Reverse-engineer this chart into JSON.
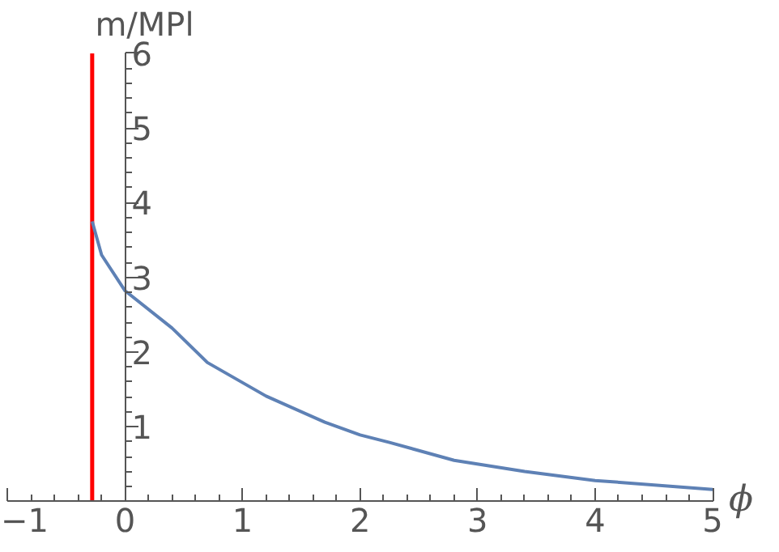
{
  "chart_data": {
    "type": "line",
    "xlabel": "ϕ",
    "ylabel": "m/MPl",
    "x": [
      -0.28,
      -0.2,
      0,
      0.4,
      0.7,
      1.2,
      1.7,
      2,
      2.25,
      2.8,
      3.4,
      4,
      5
    ],
    "series": [
      {
        "color": "#5e81b5",
        "values": [
          3.75,
          3.3,
          2.82,
          2.32,
          1.86,
          1.41,
          1.06,
          0.89,
          0.79,
          0.55,
          0.4,
          0.28,
          0.16
        ]
      }
    ],
    "xlim": [
      -1,
      5
    ],
    "ylim": [
      0,
      6
    ],
    "xticks": [
      -1,
      0,
      1,
      2,
      3,
      4,
      5
    ],
    "yticks": [
      1,
      2,
      3,
      4,
      5,
      6
    ],
    "ref_lines": [
      {
        "axis": "x",
        "value": -0.28,
        "color": "#ff0000"
      }
    ]
  }
}
